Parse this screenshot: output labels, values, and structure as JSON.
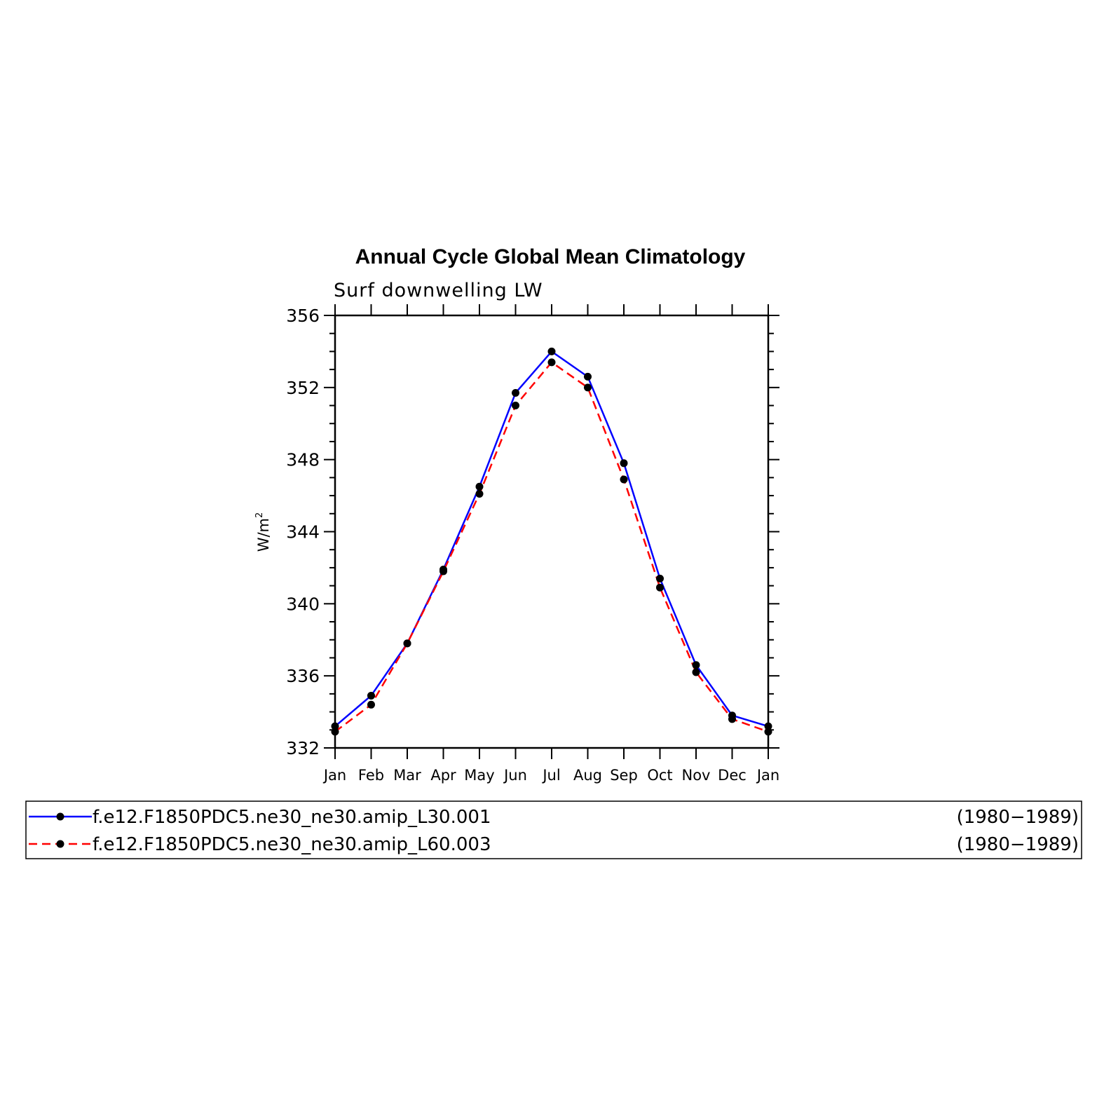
{
  "chart_data": {
    "type": "line",
    "title": "Annual Cycle Global Mean Climatology",
    "subtitle": "Surf downwelling LW",
    "ylabel": "W/m",
    "ylabel_sup": "2",
    "ylim": [
      332,
      356
    ],
    "yticks": [
      "332",
      "336",
      "340",
      "344",
      "348",
      "352",
      "356"
    ],
    "categories": [
      "Jan",
      "Feb",
      "Mar",
      "Apr",
      "May",
      "Jun",
      "Jul",
      "Aug",
      "Sep",
      "Oct",
      "Nov",
      "Dec",
      "Jan"
    ],
    "series": [
      {
        "name": "f.e12.F1850PDC5.ne30_ne30.amip_L30.001",
        "period": "(1980−1989)",
        "color": "#0000ff",
        "dash": "solid",
        "values": [
          333.2,
          334.9,
          337.8,
          341.9,
          346.5,
          351.7,
          354.0,
          352.6,
          347.8,
          341.4,
          336.6,
          333.8,
          333.2
        ]
      },
      {
        "name": "f.e12.F1850PDC5.ne30_ne30.amip_L60.003",
        "period": "(1980−1989)",
        "color": "#ff0000",
        "dash": "dashed",
        "values": [
          332.9,
          334.4,
          337.8,
          341.8,
          346.1,
          351.0,
          353.4,
          352.0,
          346.9,
          340.9,
          336.2,
          333.6,
          332.9
        ]
      }
    ],
    "marker_color": "#000000",
    "grid": false,
    "legend_position": "bottom"
  }
}
